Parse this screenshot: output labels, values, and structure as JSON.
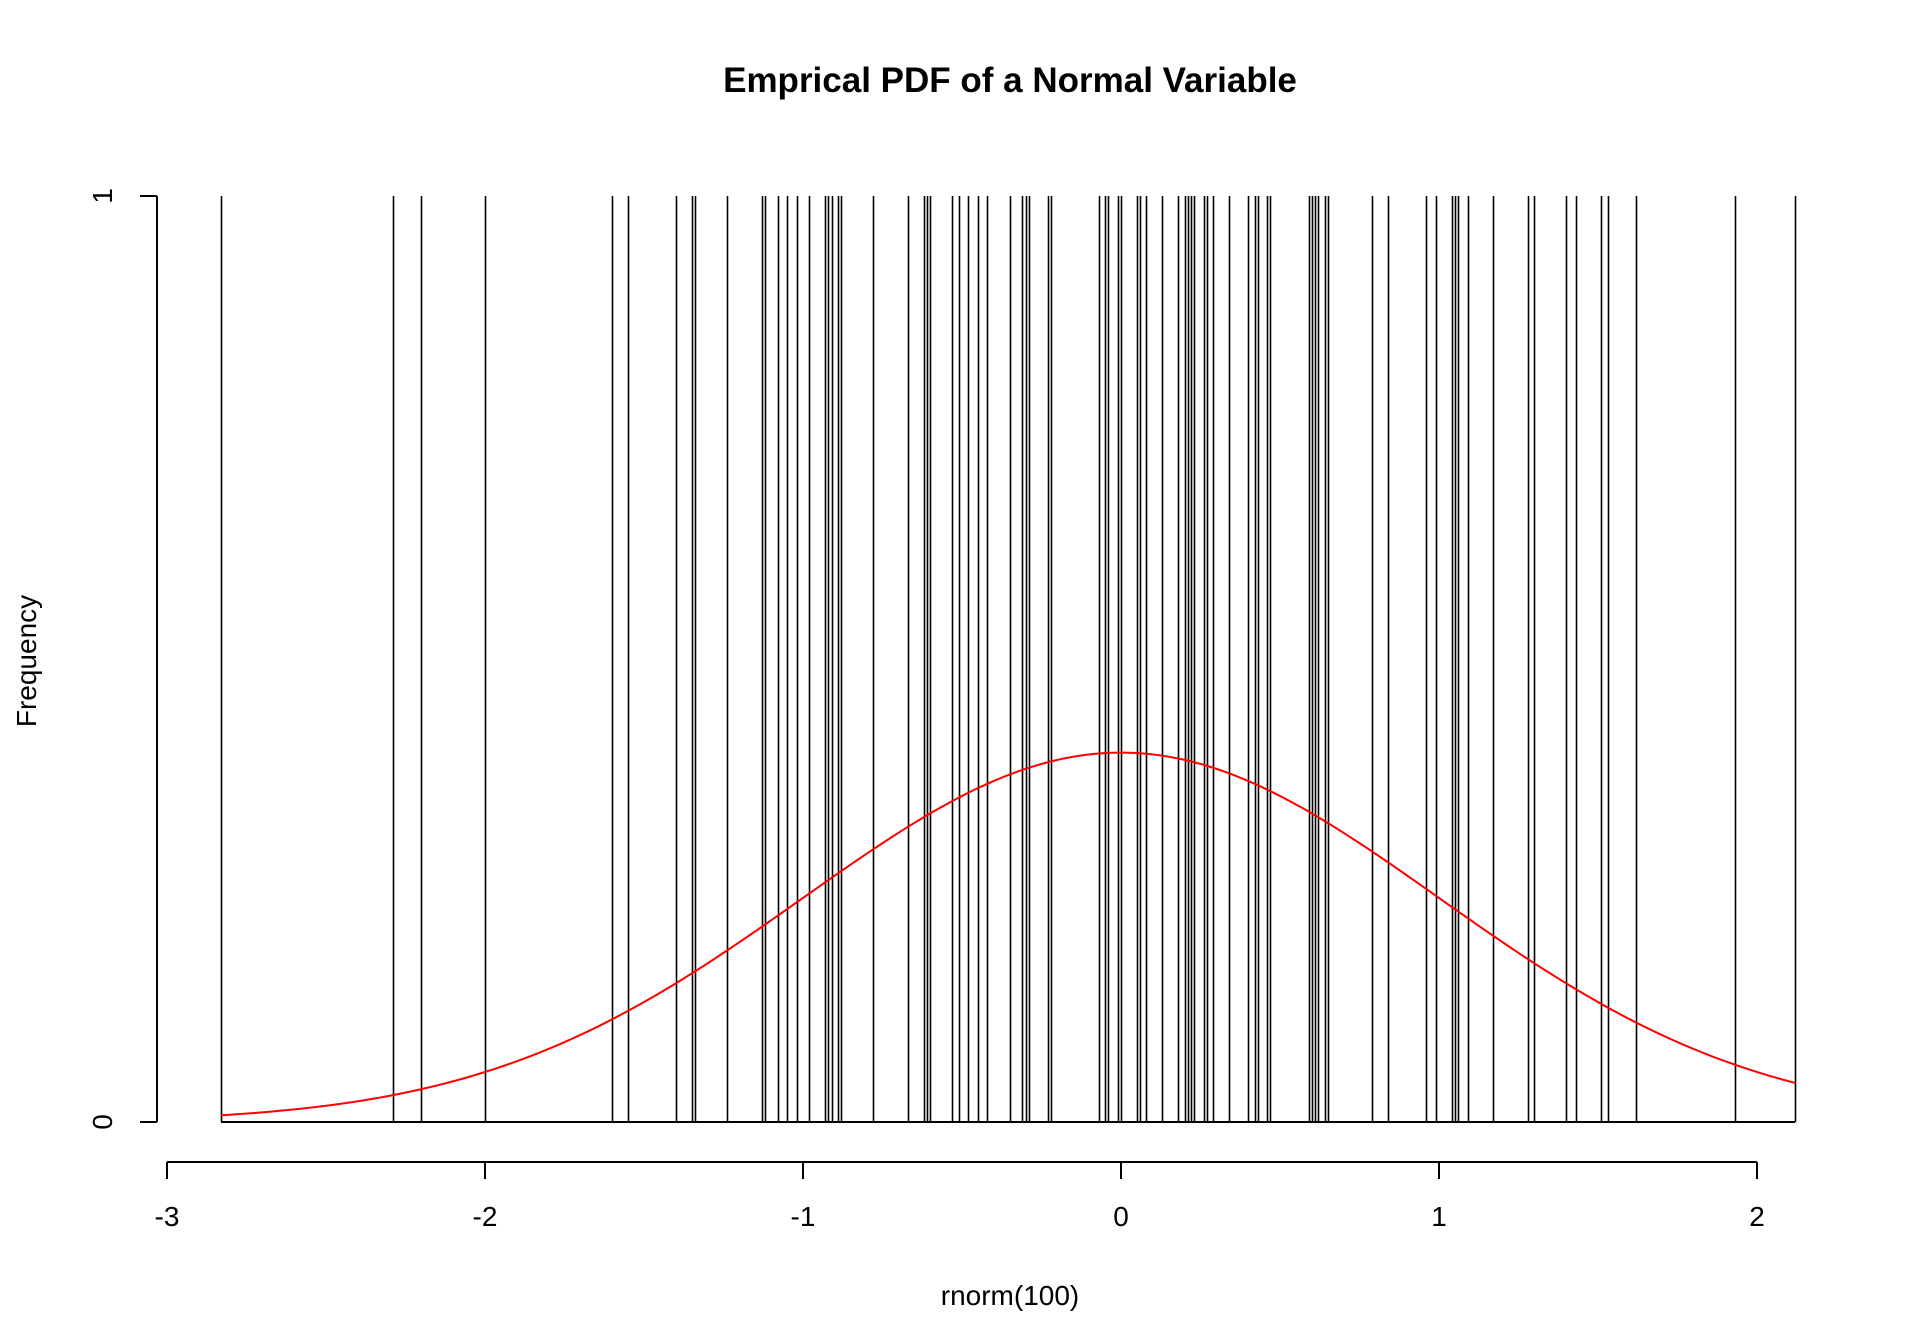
{
  "chart_data": {
    "type": "histogram",
    "title": "Emprical PDF of a Normal Variable",
    "xlabel": "rnorm(100)",
    "ylabel": "Frequency",
    "x_ticks": [
      -3,
      -2,
      -1,
      0,
      1,
      2
    ],
    "y_ticks": [
      0,
      1
    ],
    "xlim": [
      -3,
      2.12
    ],
    "ylim": [
      0,
      1
    ],
    "grid": false,
    "bar_color": "#000000",
    "bars": [
      -2.83,
      -2.29,
      -2.2,
      -2.0,
      -1.6,
      -1.55,
      -1.4,
      -1.35,
      -1.34,
      -1.24,
      -1.13,
      -1.12,
      -1.08,
      -1.05,
      -1.02,
      -0.98,
      -0.93,
      -0.92,
      -0.91,
      -0.89,
      -0.88,
      -0.78,
      -0.67,
      -0.62,
      -0.61,
      -0.6,
      -0.53,
      -0.51,
      -0.48,
      -0.45,
      -0.42,
      -0.35,
      -0.31,
      -0.3,
      -0.29,
      -0.23,
      -0.22,
      -0.07,
      -0.05,
      -0.04,
      -0.01,
      0.0,
      0.05,
      0.06,
      0.08,
      0.13,
      0.18,
      0.2,
      0.21,
      0.22,
      0.23,
      0.26,
      0.27,
      0.29,
      0.34,
      0.4,
      0.42,
      0.43,
      0.46,
      0.47,
      0.59,
      0.6,
      0.61,
      0.62,
      0.64,
      0.65,
      0.79,
      0.84,
      0.96,
      0.99,
      1.04,
      1.05,
      1.06,
      1.09,
      1.17,
      1.28,
      1.3,
      1.4,
      1.43,
      1.51,
      1.53,
      1.62,
      1.93,
      2.12
    ],
    "series": [
      {
        "type": "density-curve",
        "color": "#ff0000",
        "mean": 0,
        "sd": 1,
        "peak_value": 0.399,
        "x_range": [
          -2.83,
          2.12
        ]
      }
    ]
  }
}
